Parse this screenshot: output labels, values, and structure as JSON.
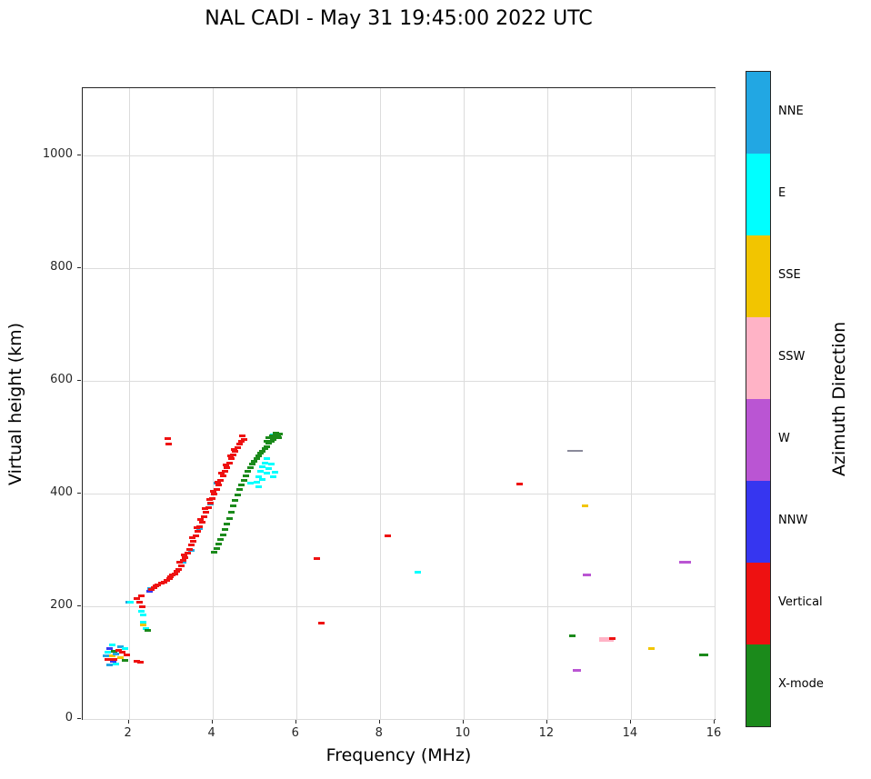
{
  "title": "NAL CADI - May 31 19:45:00 2022 UTC",
  "chart_data": {
    "type": "scatter",
    "title": "NAL CADI - May 31 19:45:00 2022 UTC",
    "xlabel": "Frequency (MHz)",
    "ylabel": "Virtual height (km)",
    "colorbar_label": "Azimuth Direction",
    "xlim": [
      0.9,
      16
    ],
    "ylim": [
      0,
      1120
    ],
    "xticks": [
      2,
      4,
      6,
      8,
      10,
      12,
      14,
      16
    ],
    "yticks": [
      0,
      200,
      400,
      600,
      800,
      1000
    ],
    "grid": true,
    "legend_position": "right-colorbar",
    "legend": [
      {
        "label": "NNE",
        "color": "#22A7E3"
      },
      {
        "label": "E",
        "color": "#00FFFF"
      },
      {
        "label": "SSE",
        "color": "#F2C500"
      },
      {
        "label": "SSW",
        "color": "#FFB3C6"
      },
      {
        "label": "W",
        "color": "#BA55D3"
      },
      {
        "label": "NNW",
        "color": "#3636F0"
      },
      {
        "label": "Vertical",
        "color": "#EE1111"
      },
      {
        "label": "X-mode",
        "color": "#1B8A1B"
      }
    ],
    "series": [
      {
        "name": "gray",
        "color": "#8A8A9A",
        "ms": [
          11,
          2
        ],
        "points": [
          [
            12.6,
            476
          ],
          [
            12.72,
            476
          ]
        ]
      },
      {
        "name": "NNW",
        "color": "#3636F0",
        "points": [
          [
            1.55,
            125
          ],
          [
            1.62,
            103
          ],
          [
            2.5,
            226
          ]
        ]
      },
      {
        "name": "SSE",
        "color": "#F2C500",
        "points": [
          [
            1.6,
            112
          ],
          [
            1.8,
            109
          ],
          [
            2.35,
            167
          ],
          [
            12.9,
            378
          ],
          [
            14.5,
            125
          ]
        ]
      },
      {
        "name": "SSW",
        "color": "#FFB3C6",
        "ms": [
          10,
          5
        ],
        "points": [
          [
            13.35,
            142
          ],
          [
            13.48,
            142
          ]
        ]
      },
      {
        "name": "W",
        "color": "#BA55D3",
        "ms": [
          9,
          3
        ],
        "points": [
          [
            12.7,
            86
          ],
          [
            12.95,
            255
          ],
          [
            15.25,
            279
          ],
          [
            15.33,
            279
          ]
        ]
      },
      {
        "name": "NNE",
        "color": "#22A7E3",
        "points": [
          [
            1.45,
            112
          ],
          [
            1.55,
            96
          ],
          [
            1.7,
            116
          ],
          [
            1.8,
            128
          ],
          [
            2.0,
            208
          ],
          [
            2.52,
            232
          ],
          [
            3.3,
            278
          ],
          [
            3.5,
            300
          ],
          [
            3.7,
            338
          ],
          [
            3.95,
            382
          ],
          [
            4.1,
            418
          ]
        ]
      },
      {
        "name": "E",
        "color": "#00FFFF",
        "points": [
          [
            1.5,
            118
          ],
          [
            1.6,
            131
          ],
          [
            1.7,
            98
          ],
          [
            1.9,
            125
          ],
          [
            2.05,
            207
          ],
          [
            2.3,
            192
          ],
          [
            2.35,
            184
          ],
          [
            2.35,
            172
          ],
          [
            2.4,
            160
          ],
          [
            4.9,
            418
          ],
          [
            5.05,
            420
          ],
          [
            5.1,
            430
          ],
          [
            5.1,
            412
          ],
          [
            5.15,
            440
          ],
          [
            5.2,
            448
          ],
          [
            5.2,
            426
          ],
          [
            5.25,
            455
          ],
          [
            5.3,
            462
          ],
          [
            5.3,
            436
          ],
          [
            5.35,
            445
          ],
          [
            5.4,
            452
          ],
          [
            5.45,
            430
          ],
          [
            5.5,
            438
          ],
          [
            5.4,
            500
          ],
          [
            5.45,
            505
          ],
          [
            8.9,
            260
          ]
        ]
      },
      {
        "name": "X-mode",
        "color": "#1B8A1B",
        "points": [
          [
            1.65,
            120
          ],
          [
            1.9,
            104
          ],
          [
            2.45,
            158
          ],
          [
            4.05,
            296
          ],
          [
            4.1,
            302
          ],
          [
            4.15,
            310
          ],
          [
            4.2,
            318
          ],
          [
            4.25,
            327
          ],
          [
            4.3,
            336
          ],
          [
            4.35,
            346
          ],
          [
            4.4,
            356
          ],
          [
            4.45,
            367
          ],
          [
            4.5,
            378
          ],
          [
            4.55,
            388
          ],
          [
            4.6,
            398
          ],
          [
            4.65,
            408
          ],
          [
            4.7,
            416
          ],
          [
            4.75,
            424
          ],
          [
            4.8,
            432
          ],
          [
            4.85,
            440
          ],
          [
            4.9,
            447
          ],
          [
            4.95,
            453
          ],
          [
            5.0,
            458
          ],
          [
            5.05,
            463
          ],
          [
            5.1,
            468
          ],
          [
            5.15,
            472
          ],
          [
            5.2,
            476
          ],
          [
            5.25,
            480
          ],
          [
            5.3,
            484
          ],
          [
            5.3,
            493
          ],
          [
            5.35,
            489
          ],
          [
            5.35,
            499
          ],
          [
            5.4,
            493
          ],
          [
            5.42,
            503
          ],
          [
            5.45,
            497
          ],
          [
            5.5,
            501
          ],
          [
            5.52,
            508
          ],
          [
            5.55,
            504
          ],
          [
            5.58,
            499
          ],
          [
            5.6,
            506
          ],
          [
            12.6,
            148
          ],
          [
            15.7,
            113
          ],
          [
            15.78,
            113
          ]
        ]
      },
      {
        "name": "Vertical",
        "color": "#EE1111",
        "points": [
          [
            1.5,
            105
          ],
          [
            1.65,
            106
          ],
          [
            1.75,
            122
          ],
          [
            1.85,
            118
          ],
          [
            1.95,
            114
          ],
          [
            2.2,
            103
          ],
          [
            2.28,
            101
          ],
          [
            2.2,
            214
          ],
          [
            2.25,
            207
          ],
          [
            2.3,
            218
          ],
          [
            2.33,
            200
          ],
          [
            2.55,
            230
          ],
          [
            2.6,
            234
          ],
          [
            2.65,
            236
          ],
          [
            2.7,
            238
          ],
          [
            2.78,
            241
          ],
          [
            2.85,
            243
          ],
          [
            2.92,
            246
          ],
          [
            2.98,
            249
          ],
          [
            3.0,
            252
          ],
          [
            3.05,
            255
          ],
          [
            3.1,
            258
          ],
          [
            3.15,
            262
          ],
          [
            3.2,
            266
          ],
          [
            3.22,
            278
          ],
          [
            3.25,
            272
          ],
          [
            3.3,
            281
          ],
          [
            3.32,
            292
          ],
          [
            3.35,
            287
          ],
          [
            3.4,
            294
          ],
          [
            3.45,
            301
          ],
          [
            3.5,
            309
          ],
          [
            3.52,
            322
          ],
          [
            3.55,
            316
          ],
          [
            3.6,
            325
          ],
          [
            3.62,
            339
          ],
          [
            3.65,
            333
          ],
          [
            3.7,
            341
          ],
          [
            3.72,
            355
          ],
          [
            3.75,
            349
          ],
          [
            3.8,
            359
          ],
          [
            3.82,
            373
          ],
          [
            3.85,
            367
          ],
          [
            3.9,
            375
          ],
          [
            3.92,
            389
          ],
          [
            3.95,
            383
          ],
          [
            4.0,
            391
          ],
          [
            4.02,
            405
          ],
          [
            4.05,
            399
          ],
          [
            4.1,
            407
          ],
          [
            4.12,
            421
          ],
          [
            4.15,
            415
          ],
          [
            4.2,
            423
          ],
          [
            4.22,
            437
          ],
          [
            4.25,
            431
          ],
          [
            4.3,
            439
          ],
          [
            4.32,
            451
          ],
          [
            4.35,
            447
          ],
          [
            4.4,
            455
          ],
          [
            4.42,
            467
          ],
          [
            4.45,
            462
          ],
          [
            4.5,
            469
          ],
          [
            4.52,
            479
          ],
          [
            4.55,
            475
          ],
          [
            4.6,
            482
          ],
          [
            4.65,
            488
          ],
          [
            4.7,
            493
          ],
          [
            4.72,
            502
          ],
          [
            4.75,
            497
          ],
          [
            2.93,
            498
          ],
          [
            2.95,
            488
          ],
          [
            6.5,
            285
          ],
          [
            6.6,
            170
          ],
          [
            8.2,
            325
          ],
          [
            11.35,
            417
          ],
          [
            13.55,
            143
          ]
        ]
      }
    ]
  }
}
